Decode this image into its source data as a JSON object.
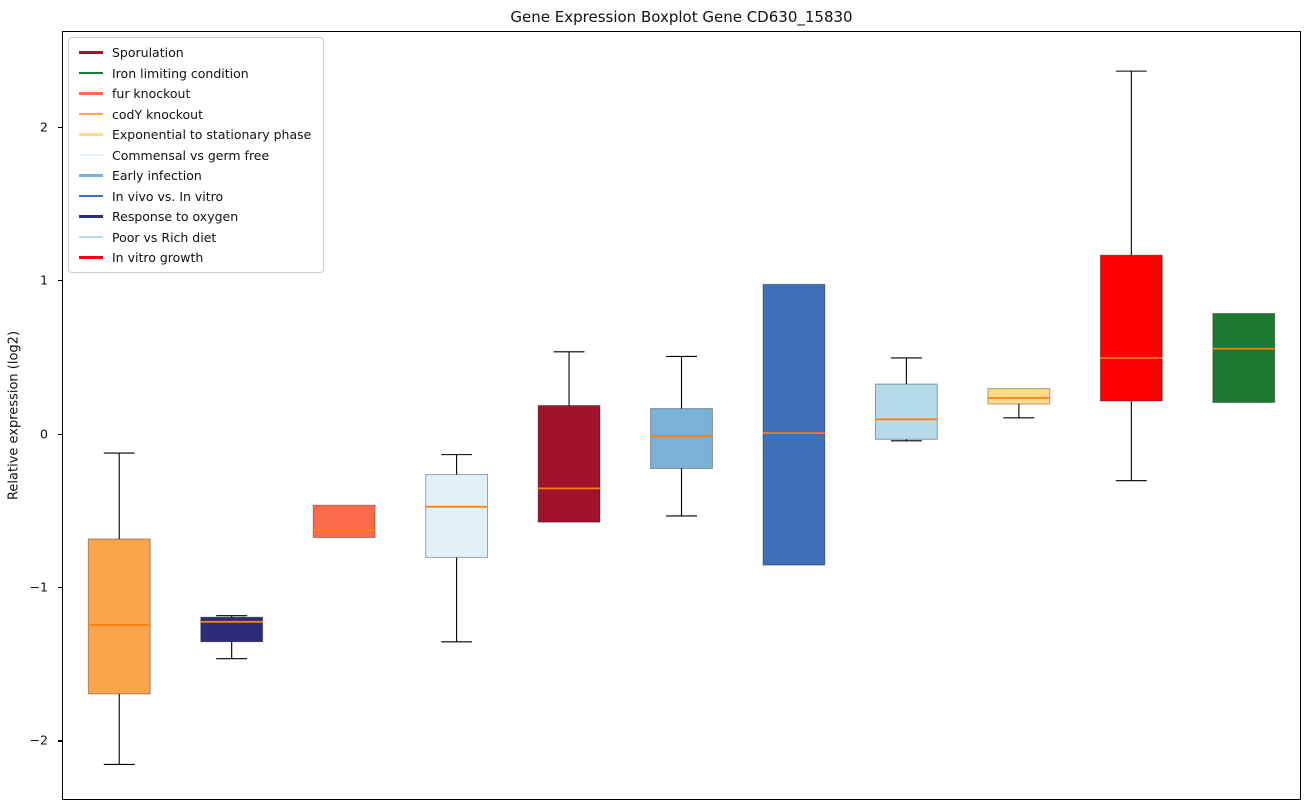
{
  "chart_data": {
    "type": "boxplot",
    "title": "Gene Expression Boxplot Gene CD630_15830",
    "xlabel": "",
    "ylabel": "Relative expression (log2)",
    "ylim": [
      -2.375,
      2.625
    ],
    "yticks": [
      2,
      1,
      0,
      -1,
      -2
    ],
    "grid": false,
    "legend_position": "upper left",
    "median_color": "#ff7f0e",
    "whisker_color": "#000000",
    "legend": [
      {
        "label": "Sporulation",
        "color": "#a0132b"
      },
      {
        "label": "Iron limiting condition",
        "color": "#1e7a31"
      },
      {
        "label": "fur knockout",
        "color": "#fb6a4a"
      },
      {
        "label": "codY knockout",
        "color": "#faa44c"
      },
      {
        "label": "Exponential to stationary phase",
        "color": "#ffdd88"
      },
      {
        "label": "Commensal vs germ free",
        "color": "#e2f0f7"
      },
      {
        "label": "Early infection",
        "color": "#7cb1d6"
      },
      {
        "label": "In vivo vs. In vitro",
        "color": "#3e6fb8"
      },
      {
        "label": "Response to oxygen",
        "color": "#2e2c78"
      },
      {
        "label": "Poor vs Rich diet",
        "color": "#b5daea"
      },
      {
        "label": "In vitro growth",
        "color": "#ff0000"
      }
    ],
    "boxes": [
      {
        "label": "codY knockout",
        "color": "#faa44c",
        "whislo": -2.15,
        "q1": -1.69,
        "med": -1.24,
        "q3": -0.68,
        "whishi": -0.12
      },
      {
        "label": "Response to oxygen",
        "color": "#2e2c78",
        "whislo": -1.46,
        "q1": -1.35,
        "med": -1.22,
        "q3": -1.19,
        "whishi": -1.18
      },
      {
        "label": "fur knockout",
        "color": "#fb6a4a",
        "whislo": -0.67,
        "q1": -0.67,
        "med": -0.62,
        "q3": -0.46,
        "whishi": -0.46
      },
      {
        "label": "Commensal vs germ free",
        "color": "#e2f0f7",
        "whislo": -1.35,
        "q1": -0.8,
        "med": -0.47,
        "q3": -0.26,
        "whishi": -0.13
      },
      {
        "label": "Sporulation",
        "color": "#a0132b",
        "whislo": -0.57,
        "q1": -0.57,
        "med": -0.35,
        "q3": 0.19,
        "whishi": 0.54
      },
      {
        "label": "Early infection",
        "color": "#7cb1d6",
        "whislo": -0.53,
        "q1": -0.22,
        "med": -0.01,
        "q3": 0.17,
        "whishi": 0.51
      },
      {
        "label": "In vivo vs. In vitro",
        "color": "#3e6fb8",
        "whislo": -0.85,
        "q1": -0.85,
        "med": 0.01,
        "q3": 0.98,
        "whishi": 0.98
      },
      {
        "label": "Poor vs Rich diet",
        "color": "#b5daea",
        "whislo": -0.04,
        "q1": -0.03,
        "med": 0.1,
        "q3": 0.33,
        "whishi": 0.5
      },
      {
        "label": "Exponential to stationary phase",
        "color": "#ffdd88",
        "whislo": 0.11,
        "q1": 0.2,
        "med": 0.24,
        "q3": 0.3,
        "whishi": 0.3
      },
      {
        "label": "In vitro growth",
        "color": "#ff0000",
        "whislo": -0.3,
        "q1": 0.22,
        "med": 0.5,
        "q3": 1.17,
        "whishi": 2.37
      },
      {
        "label": "Iron limiting condition",
        "color": "#1e7a31",
        "whislo": 0.21,
        "q1": 0.21,
        "med": 0.56,
        "q3": 0.79,
        "whishi": 0.79
      }
    ]
  }
}
